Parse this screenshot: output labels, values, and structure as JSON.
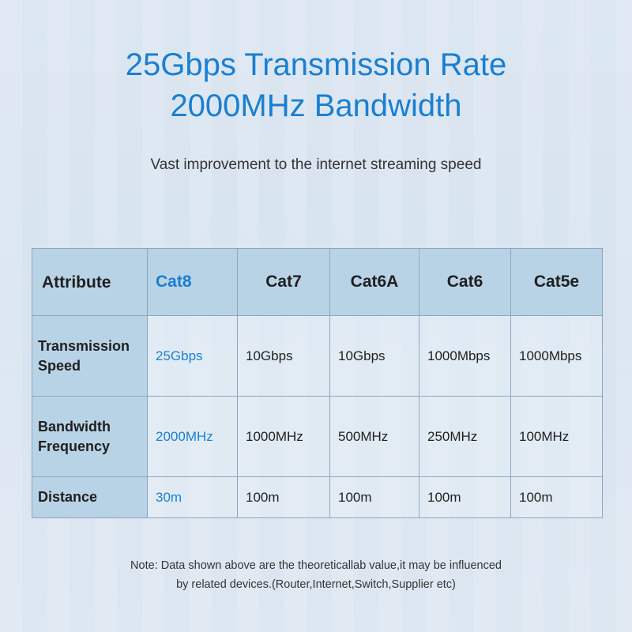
{
  "header": {
    "title_line1": "25Gbps Transmission Rate",
    "title_line2": "2000MHz Bandwidth",
    "subtitle": "Vast improvement to the internet streaming speed"
  },
  "table": {
    "headers": [
      "Attribute",
      "Cat8",
      "Cat7",
      "Cat6A",
      "Cat6",
      "Cat5e"
    ],
    "rows": [
      {
        "label": "Transmission Speed",
        "values": [
          "25Gbps",
          "10Gbps",
          "10Gbps",
          "1000Mbps",
          "1000Mbps"
        ]
      },
      {
        "label": "Bandwidth Frequency",
        "values": [
          "2000MHz",
          "1000MHz",
          "500MHz",
          "250MHz",
          "100MHz"
        ]
      },
      {
        "label": "Distance",
        "values": [
          "30m",
          "100m",
          "100m",
          "100m",
          "100m"
        ]
      }
    ]
  },
  "note": {
    "line1": "Note: Data shown above are the theoreticallab value,it may be influenced",
    "line2": "by related devices.(Router,Internet,Switch,Supplier etc)"
  },
  "colors": {
    "accent": "#1a7fd0",
    "header_cell": "#b9d3e6",
    "border": "#8fa6bd"
  }
}
